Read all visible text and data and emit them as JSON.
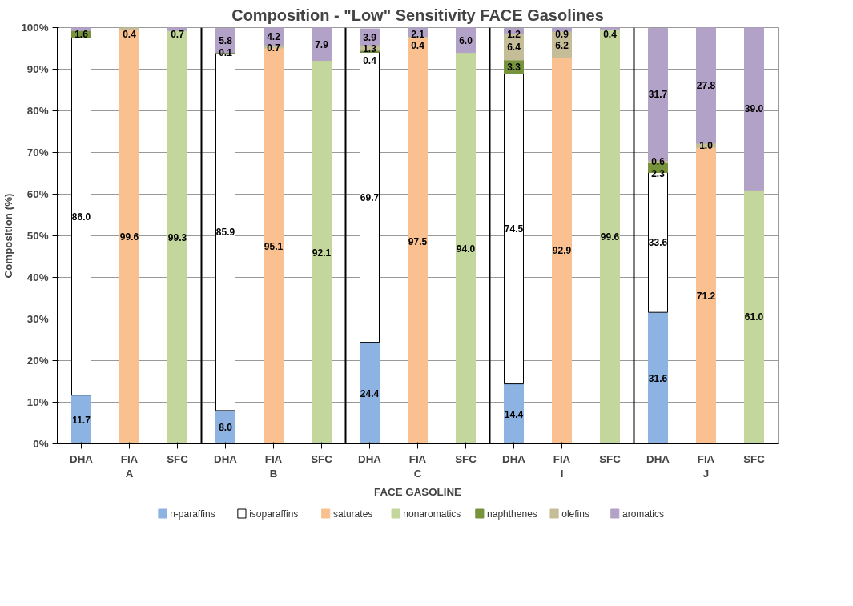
{
  "chart_data": {
    "type": "bar",
    "stacked": true,
    "title": "Composition - \"Low\" Sensitivity FACE Gasolines",
    "xlabel": "FACE GASOLINE",
    "ylabel": "Composition (%)",
    "categories": [
      "DHA",
      "FIA",
      "SFC",
      "DHA",
      "FIA",
      "SFC",
      "DHA",
      "FIA",
      "SFC",
      "DHA",
      "FIA",
      "SFC",
      "DHA",
      "FIA",
      "SFC"
    ],
    "annotations": [
      "A",
      "B",
      "C",
      "I",
      "J"
    ],
    "ylim": [
      0,
      100
    ],
    "yticks": [
      {
        "value": 0,
        "label": "0%"
      },
      {
        "value": 10,
        "label": "10%"
      },
      {
        "value": 20,
        "label": "20%"
      },
      {
        "value": 30,
        "label": "30%"
      },
      {
        "value": 40,
        "label": "40%"
      },
      {
        "value": 50,
        "label": "50%"
      },
      {
        "value": 60,
        "label": "60%"
      },
      {
        "value": 70,
        "label": "70%"
      },
      {
        "value": 80,
        "label": "80%"
      },
      {
        "value": 90,
        "label": "90%"
      },
      {
        "value": 100,
        "label": "100%"
      }
    ],
    "grid": "y",
    "legend": "bottom",
    "series": [
      {
        "name": "n-paraffins",
        "color": "#8db3e2",
        "values": [
          11.7,
          null,
          null,
          8.0,
          null,
          null,
          24.4,
          null,
          null,
          14.4,
          null,
          null,
          31.6,
          null,
          null
        ],
        "value_labels": [
          "11.7",
          null,
          null,
          "8.0",
          null,
          null,
          "24.4",
          null,
          null,
          "14.4",
          null,
          null,
          "31.6",
          null,
          null
        ]
      },
      {
        "name": "isoparaffins",
        "color": "#ffffff",
        "values": [
          86.0,
          null,
          null,
          85.9,
          null,
          null,
          69.7,
          null,
          null,
          74.5,
          null,
          null,
          33.6,
          null,
          null
        ],
        "value_labels": [
          "86.0",
          null,
          null,
          "85.9",
          null,
          null,
          "69.7",
          null,
          null,
          "74.5",
          null,
          null,
          "33.6",
          null,
          null
        ]
      },
      {
        "name": "saturates",
        "color": "#fac090",
        "values": [
          null,
          99.6,
          null,
          null,
          95.1,
          null,
          null,
          97.5,
          null,
          null,
          92.9,
          null,
          null,
          71.2,
          null
        ],
        "value_labels": [
          null,
          "99.6",
          null,
          null,
          "95.1",
          null,
          null,
          "97.5",
          null,
          null,
          "92.9",
          null,
          null,
          "71.2",
          null
        ]
      },
      {
        "name": "nonaromatics",
        "color": "#c3d69b",
        "values": [
          null,
          null,
          99.3,
          null,
          null,
          92.1,
          null,
          null,
          94.0,
          null,
          null,
          99.6,
          null,
          null,
          61.0
        ],
        "value_labels": [
          null,
          null,
          "99.3",
          null,
          null,
          "92.1",
          null,
          null,
          "94.0",
          null,
          null,
          "99.6",
          null,
          null,
          "61.0"
        ]
      },
      {
        "name": "naphthenes",
        "color": "#77933c",
        "values": [
          1.6,
          null,
          null,
          0.1,
          null,
          null,
          0.4,
          null,
          null,
          3.3,
          null,
          null,
          2.3,
          null,
          null
        ],
        "value_labels": [
          "1.6",
          null,
          null,
          "0.1",
          null,
          null,
          "0.4",
          null,
          null,
          "3.3",
          null,
          null,
          "2.3",
          null,
          null
        ]
      },
      {
        "name": "olefins",
        "color": "#c4bd97",
        "values": [
          null,
          0.4,
          null,
          null,
          0.7,
          null,
          1.3,
          0.4,
          null,
          6.4,
          6.2,
          null,
          0.6,
          1.0,
          null
        ],
        "value_labels": [
          null,
          "0.4",
          null,
          null,
          "0.7",
          null,
          "1.3",
          "0.4",
          null,
          "6.4",
          "6.2",
          null,
          "0.6",
          "1.0",
          null
        ]
      },
      {
        "name": "aromatics",
        "color": "#b3a2c7",
        "values": [
          0.7,
          null,
          0.7,
          5.8,
          4.2,
          7.9,
          3.9,
          2.1,
          6.0,
          1.2,
          0.9,
          0.4,
          31.7,
          27.8,
          39.0
        ],
        "value_labels": [
          null,
          null,
          "0.7",
          "5.8",
          "4.2",
          "7.9",
          "3.9",
          "2.1",
          "6.0",
          "1.2",
          "0.9",
          "0.4",
          "31.7",
          "27.8",
          "39.0"
        ]
      }
    ]
  }
}
